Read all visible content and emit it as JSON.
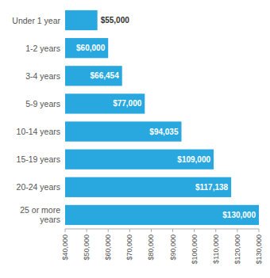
{
  "chart_data": {
    "type": "bar",
    "orientation": "horizontal",
    "categories": [
      "Under 1 year",
      "1-2 years",
      "3-4 years",
      "5-9 years",
      "10-14 years",
      "15-19 years",
      "20-24 years",
      "25 or more\nyears"
    ],
    "values": [
      55000,
      60000,
      66454,
      77000,
      94035,
      109000,
      117138,
      130000
    ],
    "value_labels": [
      "$55,000",
      "$60,000",
      "$66,454",
      "$77,000",
      "$94,035",
      "$109,000",
      "$117,138",
      "$130,000"
    ],
    "data_labels": true,
    "color": "#29a8e0",
    "xlim": [
      40000,
      130000
    ],
    "xticks": [
      {
        "value": 40000,
        "label": "$40,000"
      },
      {
        "value": 50000,
        "label": "$50,000"
      },
      {
        "value": 60000,
        "label": "$60,000"
      },
      {
        "value": 70000,
        "label": "$70,000"
      },
      {
        "value": 80000,
        "label": "$80,000"
      },
      {
        "value": 90000,
        "label": "$90,000"
      },
      {
        "value": 100000,
        "label": "$100,000"
      },
      {
        "value": 110000,
        "label": "$110,000"
      },
      {
        "value": 120000,
        "label": "$120,000"
      },
      {
        "value": 130000,
        "label": "$130,000"
      }
    ],
    "grid": false
  }
}
